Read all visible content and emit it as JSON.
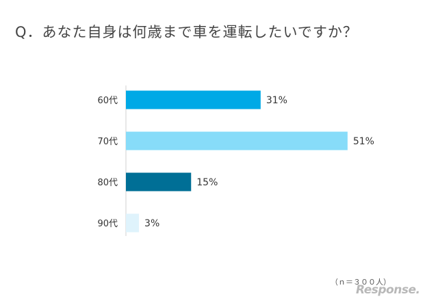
{
  "chart_data": {
    "type": "bar",
    "orientation": "horizontal",
    "title": "Q．あなた自身は何歳まで車を運転したいですか？",
    "categories": [
      "60代",
      "70代",
      "80代",
      "90代"
    ],
    "values": [
      31,
      51,
      15,
      3
    ],
    "value_labels": [
      "31%",
      "51%",
      "15%",
      "3%"
    ],
    "unit": "%",
    "colors": [
      "#00a9e6",
      "#87dcf9",
      "#006f96",
      "#dff3fc"
    ],
    "xlim": [
      0,
      100
    ],
    "grid": false,
    "legend": "none",
    "note": "（ｎ＝３００人）"
  },
  "watermark": "Response."
}
